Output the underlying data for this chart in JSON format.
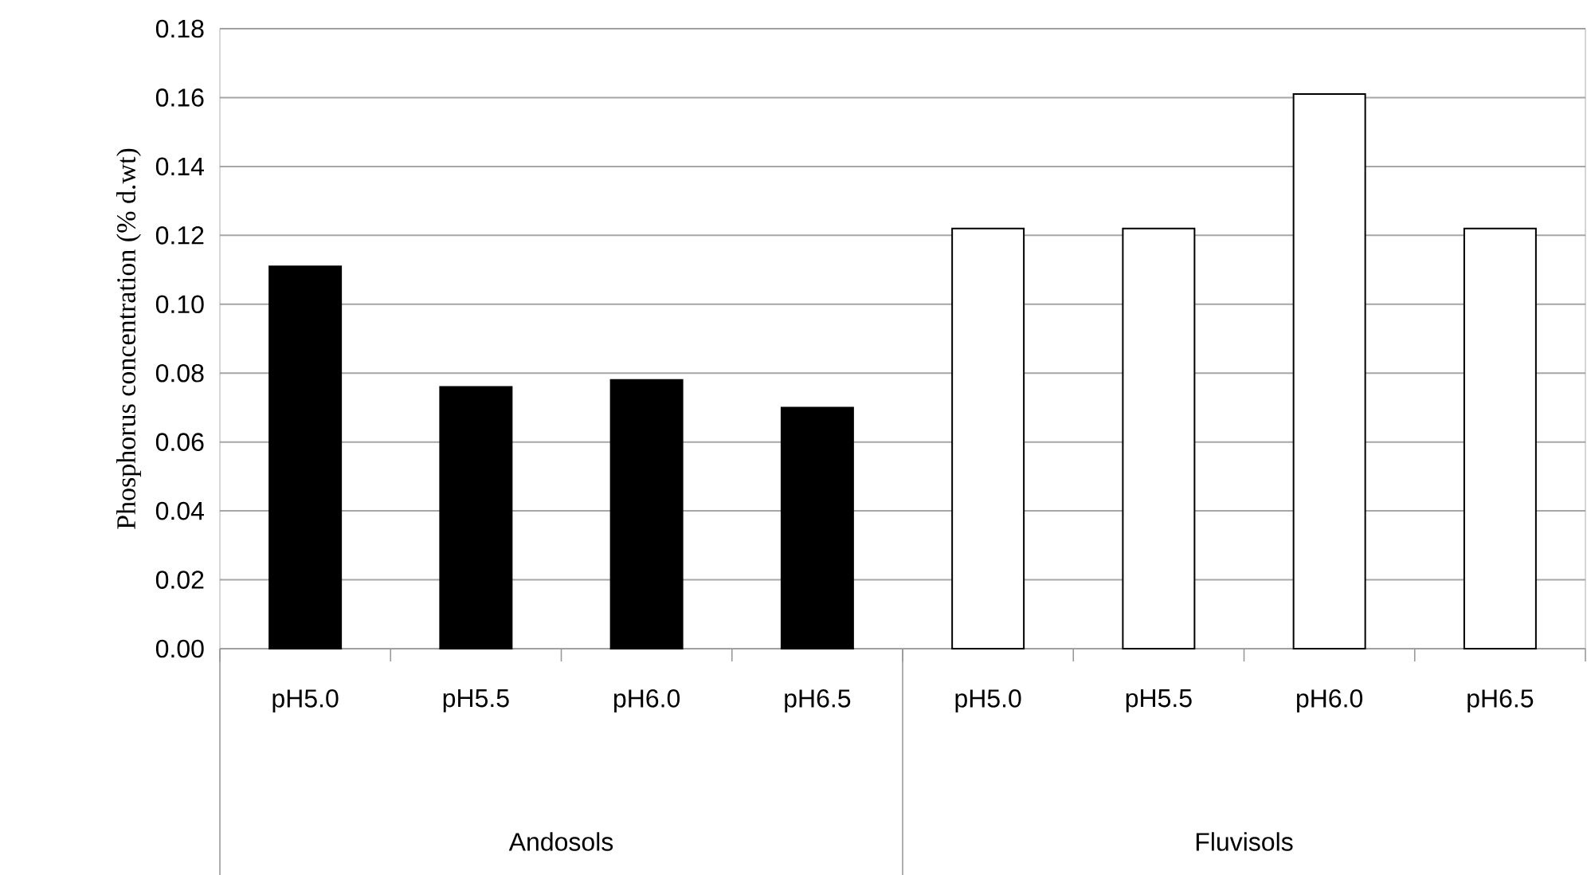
{
  "chart_data": {
    "type": "bar",
    "ylabel": "Phosphorus concentration (% d.wt)",
    "categories": [
      "pH5.0",
      "pH5.5",
      "pH6.0",
      "pH6.5",
      "pH5.0",
      "pH5.5",
      "pH6.0",
      "pH6.5"
    ],
    "values": [
      0.111,
      0.076,
      0.078,
      0.07,
      0.122,
      0.122,
      0.161,
      0.122
    ],
    "colors": [
      "#000000",
      "#000000",
      "#000000",
      "#000000",
      "#ffffff",
      "#ffffff",
      "#ffffff",
      "#ffffff"
    ],
    "annotations": [
      "Andosols",
      "Fluvisols"
    ],
    "ylim": [
      0,
      0.18
    ],
    "yticks": [
      {
        "value": 0,
        "label": "0.00"
      },
      {
        "value": 0.02,
        "label": "0.02"
      },
      {
        "value": 0.04,
        "label": "0.04"
      },
      {
        "value": 0.06,
        "label": "0.06"
      },
      {
        "value": 0.08,
        "label": "0.08"
      },
      {
        "value": 0.1,
        "label": "0.10"
      },
      {
        "value": 0.12,
        "label": "0.12"
      },
      {
        "value": 0.14,
        "label": "0.14"
      },
      {
        "value": 0.16,
        "label": "0.16"
      },
      {
        "value": 0.18,
        "label": "0.18"
      }
    ],
    "grid": "y"
  }
}
